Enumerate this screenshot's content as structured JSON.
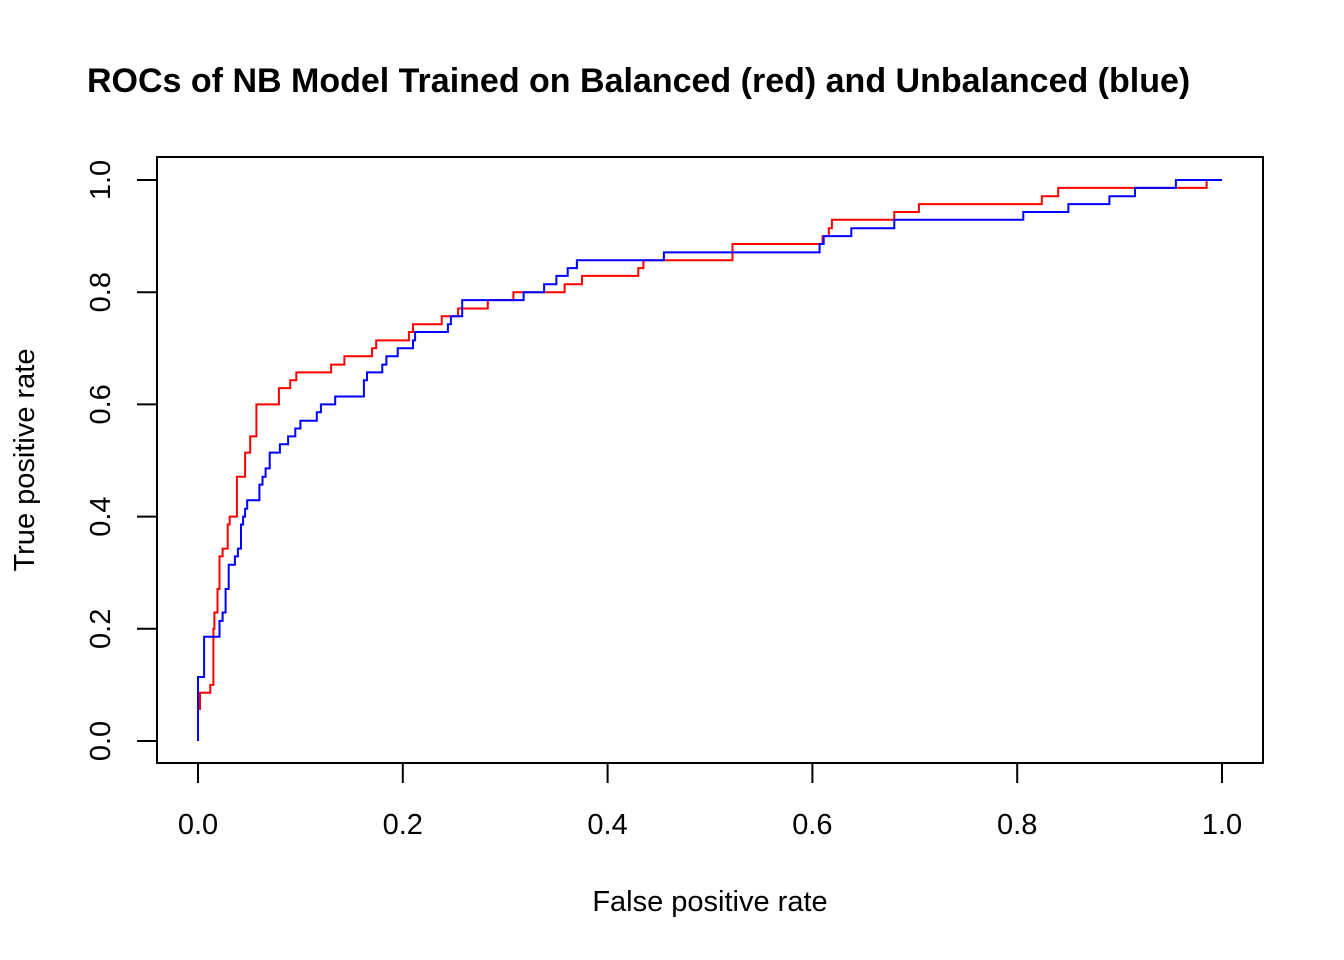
{
  "chart_data": {
    "type": "line",
    "title": "ROCs of NB Model Trained on Balanced (red) and Unbalanced (blue)",
    "xlabel": "False positive rate",
    "ylabel": "True positive rate",
    "xlim": [
      0,
      1
    ],
    "ylim": [
      0,
      1
    ],
    "x_ticks": [
      0,
      0.2,
      0.4,
      0.6,
      0.8,
      1
    ],
    "y_ticks": [
      0,
      0.2,
      0.4,
      0.6,
      0.8,
      1
    ],
    "x_tick_labels": [
      "0.0",
      "0.2",
      "0.4",
      "0.6",
      "0.8",
      "1.0"
    ],
    "y_tick_labels": [
      "0.0",
      "0.2",
      "0.4",
      "0.6",
      "0.8",
      "1.0"
    ],
    "grid": false,
    "legend": "none",
    "series": [
      {
        "color": "#ff0000",
        "points": [
          [
            0,
            0
          ],
          [
            0,
            0.057
          ],
          [
            0.002,
            0.057
          ],
          [
            0.002,
            0.086
          ],
          [
            0.012,
            0.086
          ],
          [
            0.012,
            0.1
          ],
          [
            0.015,
            0.1
          ],
          [
            0.015,
            0.2
          ],
          [
            0.016,
            0.2
          ],
          [
            0.016,
            0.229
          ],
          [
            0.019,
            0.229
          ],
          [
            0.019,
            0.271
          ],
          [
            0.021,
            0.271
          ],
          [
            0.021,
            0.329
          ],
          [
            0.024,
            0.329
          ],
          [
            0.024,
            0.343
          ],
          [
            0.029,
            0.343
          ],
          [
            0.029,
            0.386
          ],
          [
            0.031,
            0.386
          ],
          [
            0.031,
            0.4
          ],
          [
            0.038,
            0.4
          ],
          [
            0.038,
            0.471
          ],
          [
            0.046,
            0.471
          ],
          [
            0.046,
            0.514
          ],
          [
            0.051,
            0.514
          ],
          [
            0.051,
            0.543
          ],
          [
            0.057,
            0.543
          ],
          [
            0.057,
            0.6
          ],
          [
            0.079,
            0.6
          ],
          [
            0.079,
            0.629
          ],
          [
            0.09,
            0.629
          ],
          [
            0.09,
            0.643
          ],
          [
            0.096,
            0.643
          ],
          [
            0.096,
            0.657
          ],
          [
            0.13,
            0.657
          ],
          [
            0.13,
            0.671
          ],
          [
            0.143,
            0.671
          ],
          [
            0.143,
            0.686
          ],
          [
            0.17,
            0.686
          ],
          [
            0.17,
            0.7
          ],
          [
            0.174,
            0.7
          ],
          [
            0.174,
            0.714
          ],
          [
            0.206,
            0.714
          ],
          [
            0.206,
            0.729
          ],
          [
            0.21,
            0.729
          ],
          [
            0.21,
            0.743
          ],
          [
            0.238,
            0.743
          ],
          [
            0.238,
            0.757
          ],
          [
            0.254,
            0.757
          ],
          [
            0.254,
            0.771
          ],
          [
            0.283,
            0.771
          ],
          [
            0.283,
            0.786
          ],
          [
            0.308,
            0.786
          ],
          [
            0.308,
            0.8
          ],
          [
            0.358,
            0.8
          ],
          [
            0.358,
            0.814
          ],
          [
            0.375,
            0.814
          ],
          [
            0.375,
            0.829
          ],
          [
            0.43,
            0.829
          ],
          [
            0.43,
            0.843
          ],
          [
            0.435,
            0.843
          ],
          [
            0.435,
            0.857
          ],
          [
            0.522,
            0.857
          ],
          [
            0.522,
            0.886
          ],
          [
            0.61,
            0.886
          ],
          [
            0.61,
            0.9
          ],
          [
            0.616,
            0.9
          ],
          [
            0.616,
            0.914
          ],
          [
            0.619,
            0.914
          ],
          [
            0.619,
            0.929
          ],
          [
            0.68,
            0.929
          ],
          [
            0.68,
            0.943
          ],
          [
            0.704,
            0.943
          ],
          [
            0.704,
            0.957
          ],
          [
            0.824,
            0.957
          ],
          [
            0.824,
            0.971
          ],
          [
            0.84,
            0.971
          ],
          [
            0.84,
            0.986
          ],
          [
            0.985,
            0.986
          ],
          [
            0.985,
            1
          ],
          [
            1,
            1
          ]
        ]
      },
      {
        "color": "#0000ff",
        "points": [
          [
            0,
            0
          ],
          [
            0,
            0.114
          ],
          [
            0.006,
            0.114
          ],
          [
            0.006,
            0.186
          ],
          [
            0.021,
            0.186
          ],
          [
            0.021,
            0.214
          ],
          [
            0.024,
            0.214
          ],
          [
            0.024,
            0.229
          ],
          [
            0.027,
            0.229
          ],
          [
            0.027,
            0.271
          ],
          [
            0.03,
            0.271
          ],
          [
            0.03,
            0.314
          ],
          [
            0.036,
            0.314
          ],
          [
            0.036,
            0.329
          ],
          [
            0.039,
            0.329
          ],
          [
            0.039,
            0.343
          ],
          [
            0.042,
            0.343
          ],
          [
            0.042,
            0.386
          ],
          [
            0.044,
            0.386
          ],
          [
            0.044,
            0.4
          ],
          [
            0.046,
            0.4
          ],
          [
            0.046,
            0.414
          ],
          [
            0.048,
            0.414
          ],
          [
            0.048,
            0.429
          ],
          [
            0.06,
            0.429
          ],
          [
            0.06,
            0.457
          ],
          [
            0.063,
            0.457
          ],
          [
            0.063,
            0.471
          ],
          [
            0.066,
            0.471
          ],
          [
            0.066,
            0.486
          ],
          [
            0.07,
            0.486
          ],
          [
            0.07,
            0.514
          ],
          [
            0.08,
            0.514
          ],
          [
            0.08,
            0.529
          ],
          [
            0.088,
            0.529
          ],
          [
            0.088,
            0.543
          ],
          [
            0.095,
            0.543
          ],
          [
            0.095,
            0.557
          ],
          [
            0.1,
            0.557
          ],
          [
            0.1,
            0.571
          ],
          [
            0.116,
            0.571
          ],
          [
            0.116,
            0.586
          ],
          [
            0.12,
            0.586
          ],
          [
            0.12,
            0.6
          ],
          [
            0.134,
            0.6
          ],
          [
            0.134,
            0.614
          ],
          [
            0.162,
            0.614
          ],
          [
            0.162,
            0.643
          ],
          [
            0.165,
            0.643
          ],
          [
            0.165,
            0.657
          ],
          [
            0.18,
            0.657
          ],
          [
            0.18,
            0.671
          ],
          [
            0.184,
            0.671
          ],
          [
            0.184,
            0.686
          ],
          [
            0.195,
            0.686
          ],
          [
            0.195,
            0.7
          ],
          [
            0.21,
            0.7
          ],
          [
            0.21,
            0.714
          ],
          [
            0.212,
            0.714
          ],
          [
            0.212,
            0.729
          ],
          [
            0.244,
            0.729
          ],
          [
            0.244,
            0.743
          ],
          [
            0.247,
            0.743
          ],
          [
            0.247,
            0.757
          ],
          [
            0.258,
            0.757
          ],
          [
            0.258,
            0.786
          ],
          [
            0.318,
            0.786
          ],
          [
            0.318,
            0.8
          ],
          [
            0.338,
            0.8
          ],
          [
            0.338,
            0.814
          ],
          [
            0.35,
            0.814
          ],
          [
            0.35,
            0.829
          ],
          [
            0.361,
            0.829
          ],
          [
            0.361,
            0.843
          ],
          [
            0.37,
            0.843
          ],
          [
            0.37,
            0.857
          ],
          [
            0.455,
            0.857
          ],
          [
            0.455,
            0.871
          ],
          [
            0.607,
            0.871
          ],
          [
            0.607,
            0.886
          ],
          [
            0.611,
            0.886
          ],
          [
            0.611,
            0.9
          ],
          [
            0.638,
            0.9
          ],
          [
            0.638,
            0.914
          ],
          [
            0.68,
            0.914
          ],
          [
            0.68,
            0.929
          ],
          [
            0.806,
            0.929
          ],
          [
            0.806,
            0.943
          ],
          [
            0.85,
            0.943
          ],
          [
            0.85,
            0.957
          ],
          [
            0.89,
            0.957
          ],
          [
            0.89,
            0.971
          ],
          [
            0.915,
            0.971
          ],
          [
            0.915,
            0.986
          ],
          [
            0.955,
            0.986
          ],
          [
            0.955,
            1
          ],
          [
            1,
            1
          ]
        ]
      }
    ]
  }
}
